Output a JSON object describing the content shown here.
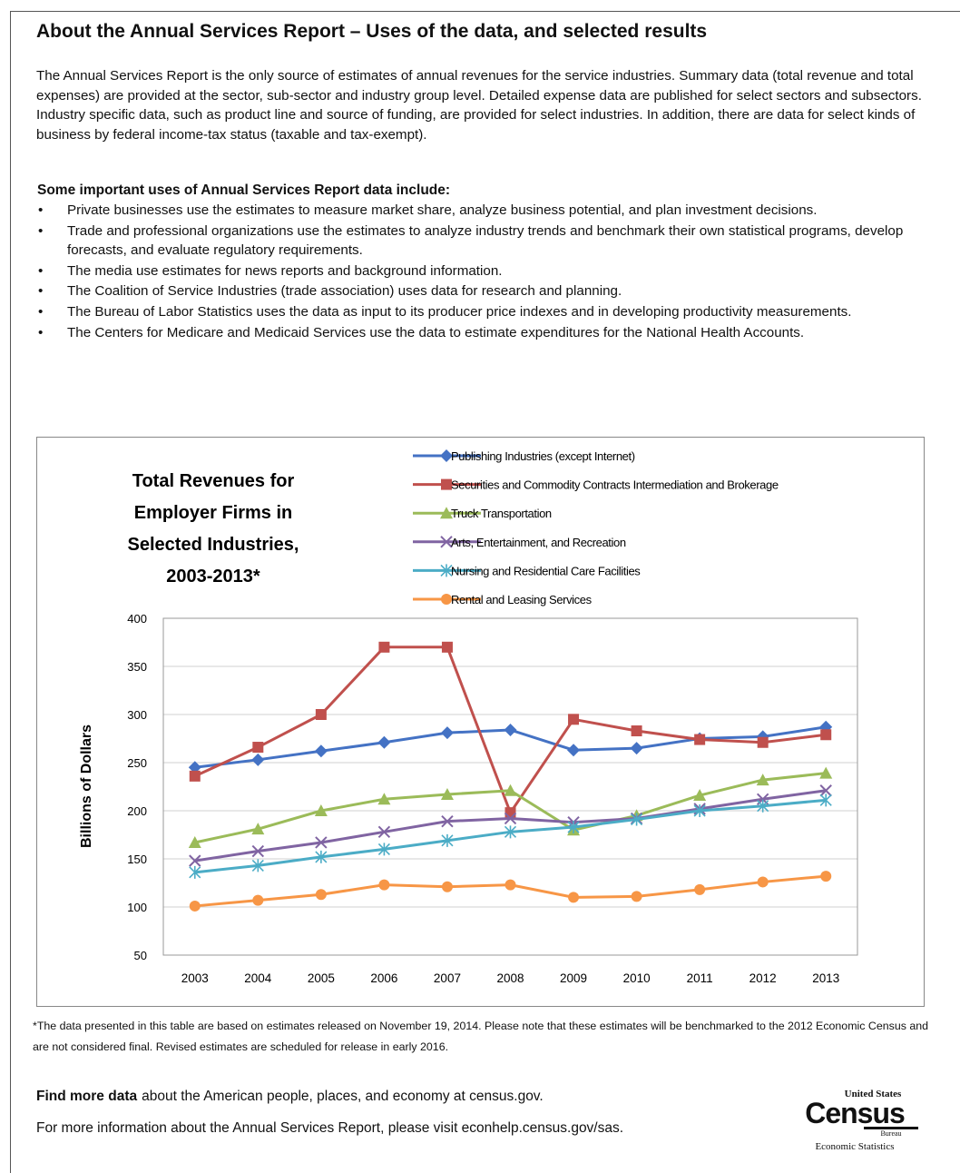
{
  "header": {
    "title": "About the Annual Services Report – Uses of the data, and selected results"
  },
  "intro": "The Annual Services Report is the only source of estimates of annual revenues for the service industries. Summary data (total revenue and total expenses) are provided at the sector, sub-sector and industry group level. Detailed expense data are published for select sectors and subsectors. Industry specific data, such as product line and source of funding, are provided for select industries. In addition, there are data for select kinds of business by federal income-tax status (taxable and tax-exempt).",
  "uses": {
    "title": "Some important uses of Annual Services Report data include:",
    "items": [
      "Private businesses use the estimates to measure market share, analyze business potential, and plan investment decisions.",
      "Trade and professional organizations use the estimates to analyze industry trends and benchmark their own statistical programs, develop forecasts, and evaluate regulatory requirements.",
      "The media use estimates for news reports and background information.",
      "The Coalition of Service Industries (trade association) uses data for research and planning.",
      "The Bureau of Labor Statistics uses the data as input to its producer price indexes and in developing productivity measurements.",
      "The Centers for Medicare and Medicaid Services use the data to estimate expenditures for the National Health Accounts."
    ]
  },
  "chart_data": {
    "type": "line",
    "title": [
      "Total Revenues for",
      "Employer Firms in",
      "Selected Industries,",
      "2003-2013*"
    ],
    "y_label": "Billions of Dollars",
    "categories": [
      "2003",
      "2004",
      "2005",
      "2006",
      "2007",
      "2008",
      "2009",
      "2010",
      "2011",
      "2012",
      "2013"
    ],
    "ylim": [
      50,
      400
    ],
    "yticks": [
      50,
      100,
      150,
      200,
      250,
      300,
      350,
      400
    ],
    "grid": true,
    "series": [
      {
        "name": "Publishing Industries (except Internet)",
        "color": "#4472c4",
        "marker": "diamond",
        "values": [
          245,
          253,
          262,
          271,
          281,
          284,
          263,
          265,
          275,
          277,
          287
        ]
      },
      {
        "name": "Securities and Commodity Contracts Intermediation and Brokerage",
        "color": "#c0504d",
        "marker": "square",
        "values": [
          236,
          266,
          300,
          370,
          370,
          198,
          295,
          283,
          274,
          271,
          279
        ]
      },
      {
        "name": "Truck Transportation",
        "color": "#9bbb59",
        "marker": "triangle",
        "values": [
          167,
          181,
          200,
          212,
          217,
          221,
          180,
          195,
          216,
          232,
          239
        ]
      },
      {
        "name": "Arts, Entertainment, and Recreation",
        "color": "#8064a2",
        "marker": "x",
        "values": [
          148,
          158,
          167,
          178,
          189,
          192,
          188,
          192,
          202,
          212,
          221
        ]
      },
      {
        "name": "Nursing and Residential Care Facilities",
        "color": "#4bacc6",
        "marker": "star",
        "values": [
          136,
          143,
          152,
          160,
          169,
          178,
          183,
          191,
          200,
          205,
          211
        ]
      },
      {
        "name": "Rental and Leasing Services",
        "color": "#f79646",
        "marker": "circle",
        "values": [
          101,
          107,
          113,
          123,
          121,
          123,
          110,
          111,
          118,
          126,
          132
        ]
      }
    ]
  },
  "footnote": "*The data presented in this table are based on estimates released on November 19, 2014. Please note that these estimates will be benchmarked to the 2012 Economic Census and are not considered final. Revised estimates are scheduled for release in early 2016.",
  "footer": {
    "find_bold": "Find more data",
    "find_rest": "about the American people, places, and economy at census.gov.",
    "more": "For more information about the Annual Services Report, please visit econhelp.census.gov/sas."
  },
  "logo": {
    "top": "United States",
    "name": "Census",
    "bureau": "Bureau",
    "sub": "Economic Statistics"
  }
}
